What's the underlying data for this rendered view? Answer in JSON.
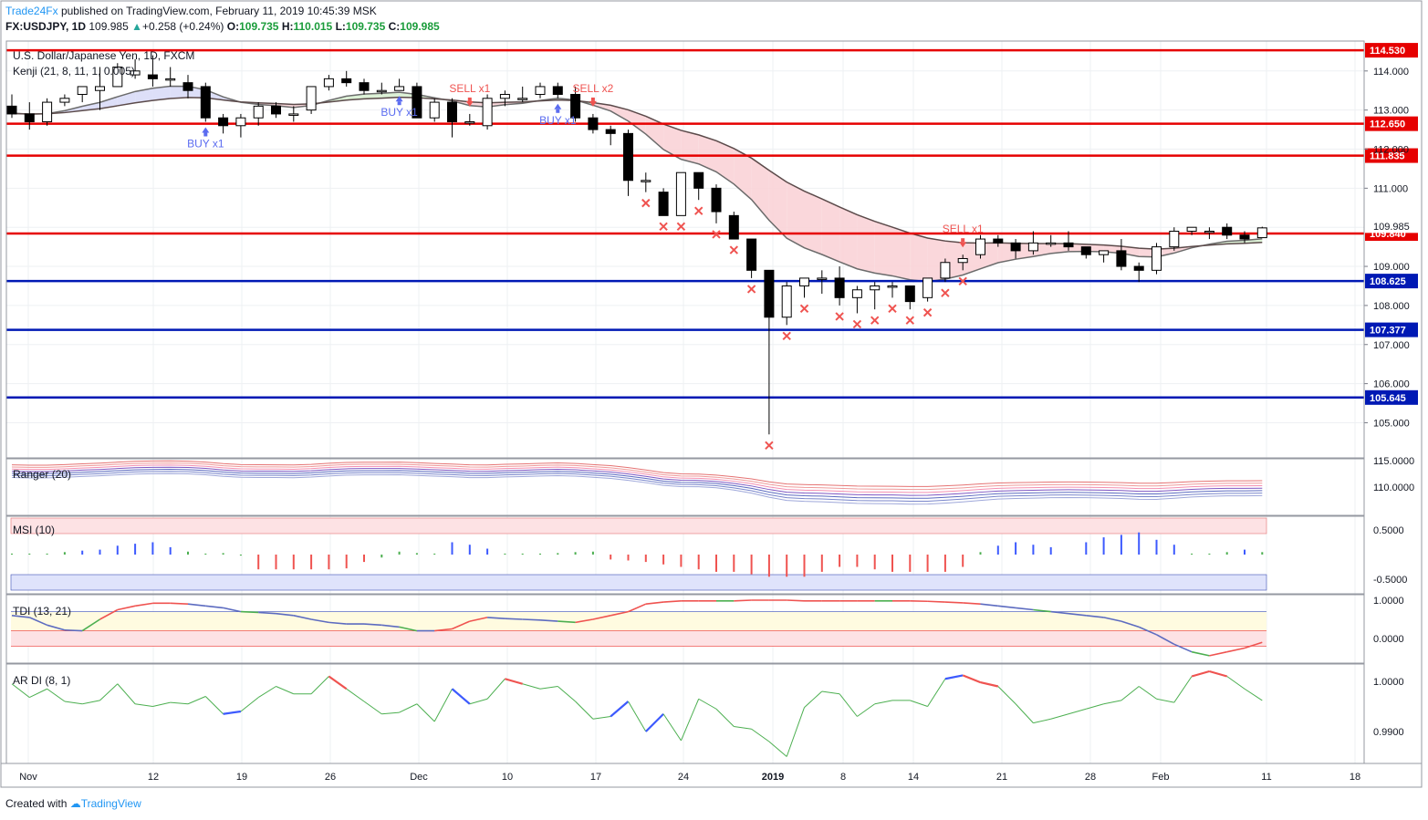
{
  "header": {
    "author": "Trade24Fx",
    "published_text": "published on TradingView.com, February 11, 2019 10:45:39 MSK",
    "symbol": "FX:USDJPY, 1D",
    "last": "109.985",
    "change": "+0.258 (+0.24%)",
    "open_label": "O:",
    "open": "109.735",
    "high_label": "H:",
    "high": "110.015",
    "low_label": "L:",
    "low": "109.735",
    "close_label": "C:",
    "close": "109.985"
  },
  "chart": {
    "title": "U.S. Dollar/Japanese Yen, 1D, FXCM",
    "indicator_label": "Kenji (21, 8, 11, 1, 0.005)"
  },
  "footer": {
    "created_with": "Created with",
    "tradingview": "TradingView"
  },
  "colors": {
    "up_candle": "#ffffff",
    "down_candle": "#000000",
    "resistance": "#e60000",
    "support": "#0019b4",
    "buy": "#5b6cf0",
    "sell": "#ef5350",
    "cloud_bear": "#f9d3d7",
    "cloud_bull": "#d8f0d2"
  },
  "chart_data": [
    {
      "type": "candlestick",
      "title": "U.S. Dollar/Japanese Yen, 1D, FXCM",
      "x_tick_labels": [
        "Nov",
        "12",
        "19",
        "26",
        "Dec",
        "10",
        "17",
        "24",
        "2019",
        "8",
        "14",
        "21",
        "28",
        "Feb",
        "11",
        "18"
      ],
      "y_tick_labels": [
        "114.000",
        "113.000",
        "112.000",
        "111.000",
        "109.000",
        "108.000",
        "107.000",
        "106.000",
        "105.000"
      ],
      "ylim": [
        104.2,
        114.9
      ],
      "grid": true,
      "candles": [
        {
          "d": "2018-11-01",
          "o": 113.1,
          "h": 113.4,
          "l": 112.8,
          "c": 112.9
        },
        {
          "d": "2018-11-02",
          "o": 112.9,
          "h": 113.2,
          "l": 112.5,
          "c": 112.7
        },
        {
          "d": "2018-11-05",
          "o": 112.7,
          "h": 113.3,
          "l": 112.6,
          "c": 113.2
        },
        {
          "d": "2018-11-06",
          "o": 113.2,
          "h": 113.4,
          "l": 113.1,
          "c": 113.3
        },
        {
          "d": "2018-11-07",
          "o": 113.4,
          "h": 113.6,
          "l": 113.2,
          "c": 113.6
        },
        {
          "d": "2018-11-08",
          "o": 113.5,
          "h": 114.1,
          "l": 113.0,
          "c": 113.6
        },
        {
          "d": "2018-11-09",
          "o": 113.6,
          "h": 114.2,
          "l": 113.6,
          "c": 114.1
        },
        {
          "d": "2018-11-12",
          "o": 113.9,
          "h": 114.3,
          "l": 113.8,
          "c": 114.0
        },
        {
          "d": "2018-11-13",
          "o": 113.9,
          "h": 114.4,
          "l": 113.6,
          "c": 113.8
        },
        {
          "d": "2018-11-14",
          "o": 113.8,
          "h": 114.1,
          "l": 113.6,
          "c": 113.8
        },
        {
          "d": "2018-11-15",
          "o": 113.7,
          "h": 113.9,
          "l": 113.3,
          "c": 113.5
        },
        {
          "d": "2018-11-16",
          "o": 113.6,
          "h": 113.7,
          "l": 112.7,
          "c": 112.8
        },
        {
          "d": "2018-11-19",
          "o": 112.8,
          "h": 112.9,
          "l": 112.4,
          "c": 112.6
        },
        {
          "d": "2018-11-20",
          "o": 112.6,
          "h": 112.9,
          "l": 112.3,
          "c": 112.8
        },
        {
          "d": "2018-11-21",
          "o": 112.8,
          "h": 113.2,
          "l": 112.6,
          "c": 113.1
        },
        {
          "d": "2018-11-22",
          "o": 113.1,
          "h": 113.2,
          "l": 112.8,
          "c": 112.9
        },
        {
          "d": "2018-11-23",
          "o": 112.9,
          "h": 113.1,
          "l": 112.7,
          "c": 112.9
        },
        {
          "d": "2018-11-26",
          "o": 113.0,
          "h": 113.6,
          "l": 112.9,
          "c": 113.6
        },
        {
          "d": "2018-11-27",
          "o": 113.6,
          "h": 113.9,
          "l": 113.5,
          "c": 113.8
        },
        {
          "d": "2018-11-28",
          "o": 113.8,
          "h": 114.0,
          "l": 113.6,
          "c": 113.7
        },
        {
          "d": "2018-11-29",
          "o": 113.7,
          "h": 113.8,
          "l": 113.4,
          "c": 113.5
        },
        {
          "d": "2018-11-30",
          "o": 113.5,
          "h": 113.7,
          "l": 113.4,
          "c": 113.5
        },
        {
          "d": "2018-12-03",
          "o": 113.5,
          "h": 113.8,
          "l": 113.5,
          "c": 113.6
        },
        {
          "d": "2018-12-04",
          "o": 113.6,
          "h": 113.7,
          "l": 112.8,
          "c": 112.8
        },
        {
          "d": "2018-12-05",
          "o": 112.8,
          "h": 113.3,
          "l": 112.7,
          "c": 113.2
        },
        {
          "d": "2018-12-06",
          "o": 113.2,
          "h": 113.3,
          "l": 112.3,
          "c": 112.7
        },
        {
          "d": "2018-12-07",
          "o": 112.7,
          "h": 112.9,
          "l": 112.6,
          "c": 112.7
        },
        {
          "d": "2018-12-10",
          "o": 112.6,
          "h": 113.4,
          "l": 112.5,
          "c": 113.3
        },
        {
          "d": "2018-12-11",
          "o": 113.3,
          "h": 113.5,
          "l": 113.1,
          "c": 113.4
        },
        {
          "d": "2018-12-12",
          "o": 113.3,
          "h": 113.6,
          "l": 113.2,
          "c": 113.3
        },
        {
          "d": "2018-12-13",
          "o": 113.4,
          "h": 113.7,
          "l": 113.3,
          "c": 113.6
        },
        {
          "d": "2018-12-14",
          "o": 113.6,
          "h": 113.7,
          "l": 113.3,
          "c": 113.4
        },
        {
          "d": "2018-12-17",
          "o": 113.4,
          "h": 113.6,
          "l": 112.7,
          "c": 112.8
        },
        {
          "d": "2018-12-18",
          "o": 112.8,
          "h": 112.9,
          "l": 112.4,
          "c": 112.5
        },
        {
          "d": "2018-12-19",
          "o": 112.5,
          "h": 112.6,
          "l": 112.1,
          "c": 112.4
        },
        {
          "d": "2018-12-20",
          "o": 112.4,
          "h": 112.5,
          "l": 110.8,
          "c": 111.2
        },
        {
          "d": "2018-12-21",
          "o": 111.2,
          "h": 111.4,
          "l": 110.9,
          "c": 111.2
        },
        {
          "d": "2018-12-24",
          "o": 110.9,
          "h": 111.0,
          "l": 110.3,
          "c": 110.3
        },
        {
          "d": "2018-12-25",
          "o": 110.3,
          "h": 111.4,
          "l": 110.3,
          "c": 111.4
        },
        {
          "d": "2018-12-26",
          "o": 111.4,
          "h": 111.4,
          "l": 110.7,
          "c": 111.0
        },
        {
          "d": "2018-12-27",
          "o": 111.0,
          "h": 111.1,
          "l": 110.1,
          "c": 110.4
        },
        {
          "d": "2018-12-28",
          "o": 110.3,
          "h": 110.4,
          "l": 109.7,
          "c": 109.7
        },
        {
          "d": "2018-12-31",
          "o": 109.7,
          "h": 109.7,
          "l": 108.7,
          "c": 108.9
        },
        {
          "d": "2019-01-02",
          "o": 108.9,
          "h": 108.9,
          "l": 104.7,
          "c": 107.7
        },
        {
          "d": "2019-01-03",
          "o": 107.7,
          "h": 108.6,
          "l": 107.5,
          "c": 108.5
        },
        {
          "d": "2019-01-04",
          "o": 108.5,
          "h": 108.7,
          "l": 108.2,
          "c": 108.7
        },
        {
          "d": "2019-01-07",
          "o": 108.7,
          "h": 108.9,
          "l": 108.3,
          "c": 108.7
        },
        {
          "d": "2019-01-08",
          "o": 108.7,
          "h": 109.0,
          "l": 108.0,
          "c": 108.2
        },
        {
          "d": "2019-01-09",
          "o": 108.2,
          "h": 108.5,
          "l": 107.8,
          "c": 108.4
        },
        {
          "d": "2019-01-10",
          "o": 108.4,
          "h": 108.6,
          "l": 107.9,
          "c": 108.5
        },
        {
          "d": "2019-01-11",
          "o": 108.5,
          "h": 108.6,
          "l": 108.2,
          "c": 108.5
        },
        {
          "d": "2019-01-14",
          "o": 108.5,
          "h": 108.5,
          "l": 107.9,
          "c": 108.1
        },
        {
          "d": "2019-01-15",
          "o": 108.2,
          "h": 108.7,
          "l": 108.1,
          "c": 108.7
        },
        {
          "d": "2019-01-16",
          "o": 108.7,
          "h": 109.2,
          "l": 108.6,
          "c": 109.1
        },
        {
          "d": "2019-01-17",
          "o": 109.1,
          "h": 109.3,
          "l": 108.9,
          "c": 109.2
        },
        {
          "d": "2019-01-18",
          "o": 109.3,
          "h": 109.8,
          "l": 109.2,
          "c": 109.7
        },
        {
          "d": "2019-01-21",
          "o": 109.7,
          "h": 109.8,
          "l": 109.5,
          "c": 109.6
        },
        {
          "d": "2019-01-22",
          "o": 109.6,
          "h": 109.7,
          "l": 109.2,
          "c": 109.4
        },
        {
          "d": "2019-01-23",
          "o": 109.4,
          "h": 109.9,
          "l": 109.3,
          "c": 109.6
        },
        {
          "d": "2019-01-24",
          "o": 109.6,
          "h": 109.8,
          "l": 109.5,
          "c": 109.6
        },
        {
          "d": "2019-01-25",
          "o": 109.6,
          "h": 109.9,
          "l": 109.4,
          "c": 109.5
        },
        {
          "d": "2019-01-28",
          "o": 109.5,
          "h": 109.5,
          "l": 109.2,
          "c": 109.3
        },
        {
          "d": "2019-01-29",
          "o": 109.3,
          "h": 109.4,
          "l": 109.1,
          "c": 109.4
        },
        {
          "d": "2019-01-30",
          "o": 109.4,
          "h": 109.7,
          "l": 108.9,
          "c": 109.0
        },
        {
          "d": "2019-01-31",
          "o": 109.0,
          "h": 109.1,
          "l": 108.6,
          "c": 108.9
        },
        {
          "d": "2019-02-01",
          "o": 108.9,
          "h": 109.6,
          "l": 108.8,
          "c": 109.5
        },
        {
          "d": "2019-02-04",
          "o": 109.5,
          "h": 110.0,
          "l": 109.4,
          "c": 109.9
        },
        {
          "d": "2019-02-05",
          "o": 109.9,
          "h": 110.0,
          "l": 109.8,
          "c": 110.0
        },
        {
          "d": "2019-02-06",
          "o": 109.9,
          "h": 110.0,
          "l": 109.7,
          "c": 109.9
        },
        {
          "d": "2019-02-07",
          "o": 110.0,
          "h": 110.1,
          "l": 109.7,
          "c": 109.8
        },
        {
          "d": "2019-02-08",
          "o": 109.8,
          "h": 109.9,
          "l": 109.6,
          "c": 109.7
        },
        {
          "d": "2019-02-11",
          "o": 109.735,
          "h": 110.015,
          "l": 109.735,
          "c": 109.985
        }
      ],
      "levels": [
        {
          "value": 114.53,
          "label": "114.530",
          "kind": "resistance"
        },
        {
          "value": 112.65,
          "label": "112.650",
          "kind": "resistance"
        },
        {
          "value": 111.835,
          "label": "111.835",
          "kind": "resistance"
        },
        {
          "value": 109.84,
          "label": "109.840",
          "kind": "resistance"
        },
        {
          "value": 108.625,
          "label": "108.625",
          "kind": "support"
        },
        {
          "value": 107.377,
          "label": "107.377",
          "kind": "support"
        },
        {
          "value": 105.645,
          "label": "105.645",
          "kind": "support"
        }
      ],
      "last_price_label": "109.985",
      "signals": [
        {
          "label": "BUY x1",
          "i": 11,
          "kind": "buy"
        },
        {
          "label": "SELL x1",
          "i": 26,
          "kind": "sell"
        },
        {
          "label": "BUY x1",
          "i": 22,
          "kind": "buy"
        },
        {
          "label": "BUY x1",
          "i": 31,
          "kind": "buy"
        },
        {
          "label": "SELL x2",
          "i": 33,
          "kind": "sell"
        },
        {
          "label": "SELL x1",
          "i": 54,
          "kind": "sell"
        }
      ]
    },
    {
      "type": "line",
      "title": "Ranger (20)",
      "y_tick_labels": [
        "115.0000",
        "110.0000"
      ]
    },
    {
      "type": "bar",
      "title": "MSI (10)",
      "y_tick_labels": [
        "0.5000",
        "-0.5000"
      ],
      "values": [
        0.02,
        0.02,
        0.02,
        0.05,
        0.08,
        0.1,
        0.18,
        0.22,
        0.25,
        0.15,
        0.06,
        0.02,
        0.03,
        -0.02,
        -0.3,
        -0.3,
        -0.3,
        -0.3,
        -0.3,
        -0.28,
        -0.15,
        -0.06,
        0.06,
        0.03,
        0.02,
        0.25,
        0.2,
        0.12,
        0.02,
        0.02,
        0.02,
        0.03,
        0.05,
        0.06,
        -0.1,
        -0.12,
        -0.15,
        -0.2,
        -0.25,
        -0.3,
        -0.35,
        -0.35,
        -0.4,
        -0.45,
        -0.45,
        -0.45,
        -0.35,
        -0.25,
        -0.25,
        -0.3,
        -0.35,
        -0.35,
        -0.35,
        -0.35,
        -0.25,
        0.05,
        0.18,
        0.25,
        0.2,
        0.15,
        0.0,
        0.25,
        0.35,
        0.4,
        0.45,
        0.3,
        0.2,
        0.02,
        0.02,
        0.05,
        0.1,
        0.05,
        0.12,
        0.08,
        0.1
      ]
    },
    {
      "type": "line",
      "title": "TDI (13, 21)",
      "y_tick_labels": [
        "1.0000",
        "0.0000"
      ]
    },
    {
      "type": "line",
      "title": "AR DI (8, 1)",
      "y_tick_labels": [
        "1.0000",
        "0.9900"
      ]
    }
  ]
}
